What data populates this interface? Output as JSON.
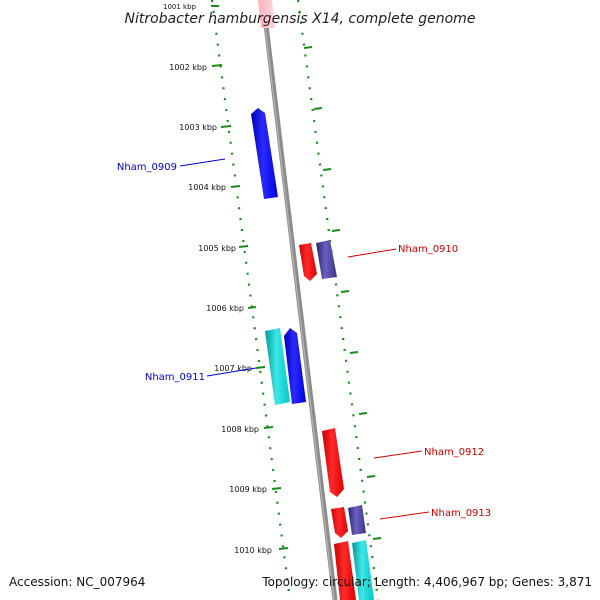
{
  "title": "Nitrobacter hamburgensis X14, complete genome",
  "footer": {
    "accession": "Accession: NC_007964",
    "topology": "Topology: circular; Length: 4,406,967 bp; Genes: 3,871"
  },
  "colors": {
    "ruler": "#1a8a1a",
    "backbone": "#8c8c8c",
    "forward_label": "#0000cc",
    "reverse_label": "#cc0000",
    "blue": "#0000ff",
    "red": "#ff0000",
    "cyan": "#00d0d0",
    "slate": "#4b3f99",
    "pink": "#ffc0cb"
  },
  "kbp_marks": [
    {
      "kbp": 1001,
      "label": "1001 kbp"
    },
    {
      "kbp": 1002,
      "label": "1002 kbp"
    },
    {
      "kbp": 1003,
      "label": "1003 kbp"
    },
    {
      "kbp": 1004,
      "label": "1004 kbp"
    },
    {
      "kbp": 1005,
      "label": "1005 kbp"
    },
    {
      "kbp": 1006,
      "label": "1006 kbp"
    },
    {
      "kbp": 1007,
      "label": "1007 kbp"
    },
    {
      "kbp": 1008,
      "label": "1008 kbp"
    },
    {
      "kbp": 1009,
      "label": "1009 kbp"
    },
    {
      "kbp": 1010,
      "label": "1010 kbp"
    }
  ],
  "genes": [
    {
      "name": "Nham_0909",
      "strand": "forward",
      "color": "blue"
    },
    {
      "name": "Nham_0910",
      "strand": "reverse",
      "color": "red"
    },
    {
      "name": "Nham_0911",
      "strand": "forward",
      "color": "blue"
    },
    {
      "name": "Nham_0912",
      "strand": "reverse",
      "color": "red"
    },
    {
      "name": "Nham_0913",
      "strand": "reverse",
      "color": "red"
    }
  ]
}
